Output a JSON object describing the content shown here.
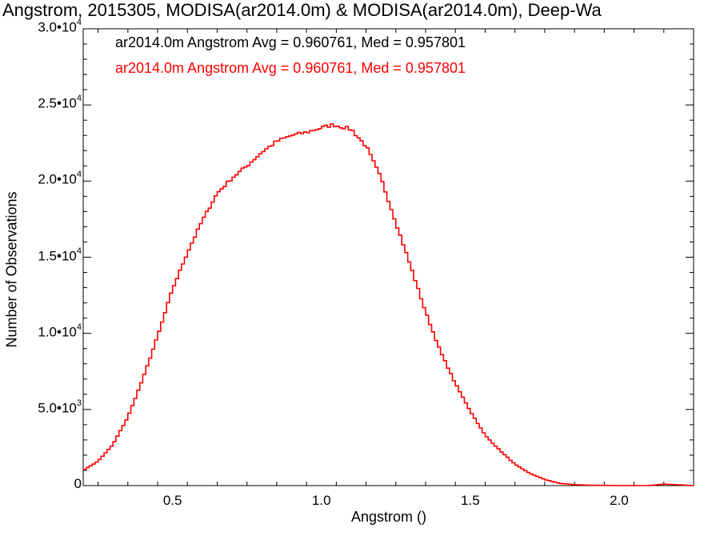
{
  "chart_data": {
    "type": "line",
    "title": "Angstrom, 2015305, MODISA(ar2014.0m) & MODISA(ar2014.0m), Deep-Wa",
    "xlabel": "Angstrom ()",
    "ylabel": "Number of Observations",
    "xlim": [
      0.2,
      2.25
    ],
    "ylim": [
      0,
      30000
    ],
    "x_ticks": [
      0.5,
      1.0,
      1.5,
      2.0
    ],
    "x_tick_labels": [
      "0.5",
      "1.0",
      "1.5",
      "2.0"
    ],
    "y_ticks": [
      0,
      5000,
      10000,
      15000,
      20000,
      25000,
      30000
    ],
    "y_tick_labels": [
      {
        "mant": "0",
        "exp": ""
      },
      {
        "mant": "5.0•10",
        "exp": "3"
      },
      {
        "mant": "1.0•10",
        "exp": "4"
      },
      {
        "mant": "1.5•10",
        "exp": "4"
      },
      {
        "mant": "2.0•10",
        "exp": "4"
      },
      {
        "mant": "2.5•10",
        "exp": "4"
      },
      {
        "mant": "3.0•10",
        "exp": "4"
      }
    ],
    "grid": false,
    "legend_position": "top-left",
    "annotations": [
      {
        "text": "ar2014.0m Angstrom Avg = 0.960761, Med = 0.957801",
        "color": "#000000"
      },
      {
        "text": "ar2014.0m Angstrom Avg = 0.960761, Med = 0.957801",
        "color": "#ff0000"
      }
    ],
    "series": [
      {
        "color": "#ff0000",
        "step": true,
        "x": [
          0.2,
          0.25,
          0.3,
          0.35,
          0.4,
          0.45,
          0.5,
          0.55,
          0.6,
          0.65,
          0.7,
          0.75,
          0.8,
          0.85,
          0.9,
          0.95,
          1.0,
          1.04,
          1.1,
          1.15,
          1.2,
          1.25,
          1.3,
          1.35,
          1.4,
          1.45,
          1.5,
          1.55,
          1.6,
          1.65,
          1.7,
          1.75,
          1.8,
          1.85,
          1.9,
          1.95,
          2.0,
          2.05,
          2.1,
          2.15,
          2.25
        ],
        "y": [
          1000,
          1600,
          2700,
          4500,
          7000,
          9800,
          12900,
          15300,
          17400,
          19200,
          20200,
          21000,
          21900,
          22600,
          23000,
          23200,
          23500,
          23700,
          23400,
          22300,
          20200,
          17300,
          14400,
          11400,
          8800,
          6700,
          4900,
          3300,
          2300,
          1400,
          800,
          400,
          150,
          60,
          30,
          15,
          5,
          3,
          2,
          100,
          0
        ]
      }
    ]
  }
}
